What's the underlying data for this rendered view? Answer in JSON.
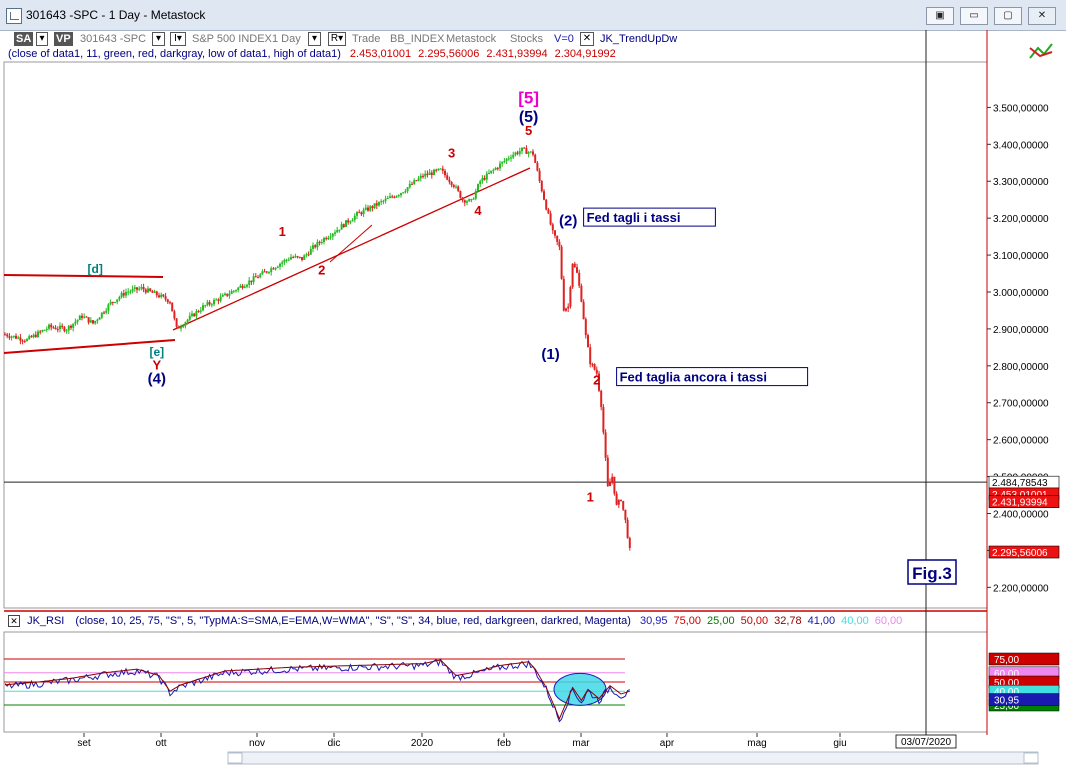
{
  "window": {
    "title": "301643 -SPC - 1 Day - Metastock",
    "buttons": [
      "▣",
      "▭",
      "▢",
      "✕"
    ]
  },
  "toolbar": {
    "sa": "SA",
    "vp": "VP",
    "symbol": "301643 -SPC",
    "dd1": "▾",
    "interval_btn": "I▾",
    "name": "S&P 500 INDEX",
    "interval": "1 Day",
    "dd2": "▾",
    "r_btn": "R▾",
    "trade": "Trade",
    "source": "BB_INDEX",
    "vendor": "Metastock",
    "type": "Stocks",
    "volume": "V=0",
    "close_x": "✕",
    "indicator": "JK_TrendUpDw"
  },
  "info_line": {
    "params": "(close of data1,  11,  green,  red,  darkgray,  low of data1,  high of data1)",
    "values": [
      "2.453,01001",
      "2.295,56006",
      "2.431,93994",
      "2.304,91992"
    ]
  },
  "rsi_line": {
    "close_x": "✕",
    "name": "JK_RSI",
    "params": "(close,  10,  25,  75,  \"S\",  5,  \"TypMA:S=SMA,E=EMA,W=WMA\",  \"S\",  \"S\",  34,  blue,  red,  darkgreen,  darkred,  Magenta)",
    "values": [
      {
        "text": "30,95",
        "color": "#1a1ab0"
      },
      {
        "text": "75,00",
        "color": "#cc0000"
      },
      {
        "text": "25,00",
        "color": "#008000"
      },
      {
        "text": "50,00",
        "color": "#cc0000"
      },
      {
        "text": "32,78",
        "color": "#8b0000"
      },
      {
        "text": "41,00",
        "color": "#1a1ab0"
      },
      {
        "text": "40,00",
        "color": "#40e0e0"
      },
      {
        "text": "60,00",
        "color": "#ee88ee"
      }
    ]
  },
  "chart_data": {
    "type": "candlestick",
    "y_ticks": [
      "3.500,00000",
      "3.400,00000",
      "3.300,00000",
      "3.200,00000",
      "3.100,00000",
      "3.000,00000",
      "2.900,00000",
      "2.800,00000",
      "2.700,00000",
      "2.600,00000",
      "2.500,00000",
      "2.400,00000",
      "2.300,00000",
      "2.200,00000"
    ],
    "y_tick_values": [
      3500,
      3400,
      3300,
      3200,
      3100,
      3000,
      2900,
      2800,
      2700,
      2600,
      2500,
      2400,
      2300,
      2200
    ],
    "ylim": [
      2144,
      3623
    ],
    "months": [
      "set",
      "ott",
      "nov",
      "dic",
      "2020",
      "feb",
      "mar",
      "apr",
      "mag",
      "giu"
    ],
    "date_box": "03/07/2020",
    "crosshair_value": "2.484,78543",
    "price_labels": [
      {
        "text": "2.484,78543",
        "value": 2484.8,
        "bg": "#ffffff",
        "fg": "#000000"
      },
      {
        "text": "2.453,01001",
        "value": 2453.0,
        "bg": "#ee1111",
        "fg": "#ffffff"
      },
      {
        "text": "2.431,93994",
        "value": 2431.9,
        "bg": "#ee1111",
        "fg": "#ffffff"
      },
      {
        "text": "2.295,56006",
        "value": 2295.6,
        "bg": "#ee1111",
        "fg": "#ffffff"
      }
    ],
    "series_waypoints": [
      [
        0,
        2885
      ],
      [
        10,
        2870
      ],
      [
        20,
        2905
      ],
      [
        28,
        2900
      ],
      [
        35,
        2935
      ],
      [
        40,
        2915
      ],
      [
        48,
        2970
      ],
      [
        55,
        3000
      ],
      [
        62,
        3010
      ],
      [
        70,
        2990
      ],
      [
        75,
        2975
      ],
      [
        78,
        2900
      ],
      [
        82,
        2920
      ],
      [
        90,
        2960
      ],
      [
        100,
        2990
      ],
      [
        110,
        3025
      ],
      [
        120,
        3060
      ],
      [
        130,
        3095
      ],
      [
        135,
        3090
      ],
      [
        140,
        3120
      ],
      [
        145,
        3145
      ],
      [
        150,
        3165
      ],
      [
        160,
        3210
      ],
      [
        170,
        3240
      ],
      [
        180,
        3270
      ],
      [
        190,
        3315
      ],
      [
        198,
        3330
      ],
      [
        204,
        3290
      ],
      [
        208,
        3250
      ],
      [
        212,
        3245
      ],
      [
        216,
        3300
      ],
      [
        222,
        3330
      ],
      [
        230,
        3370
      ],
      [
        235,
        3385
      ],
      [
        240,
        3375
      ],
      [
        241,
        3350
      ],
      [
        243,
        3300
      ],
      [
        246,
        3230
      ],
      [
        249,
        3160
      ],
      [
        252,
        3120
      ],
      [
        254,
        2955
      ],
      [
        256,
        2960
      ],
      [
        258,
        3080
      ],
      [
        260,
        3050
      ],
      [
        262,
        2980
      ],
      [
        264,
        2880
      ],
      [
        266,
        2810
      ],
      [
        269,
        2780
      ],
      [
        271,
        2695
      ],
      [
        274,
        2470
      ],
      [
        276,
        2500
      ],
      [
        278,
        2420
      ],
      [
        280,
        2440
      ],
      [
        282,
        2380
      ],
      [
        284,
        2300
      ]
    ],
    "labels": [
      {
        "text": "[5]",
        "x": 238,
        "y": 3510,
        "color": "#ee00cc",
        "size": 17
      },
      {
        "text": "(5)",
        "x": 238,
        "y": 3460,
        "color": "#000080",
        "size": 16
      },
      {
        "text": "5",
        "x": 238,
        "y": 3425,
        "color": "#cc0000",
        "size": 13
      },
      {
        "text": "3",
        "x": 203,
        "y": 3364,
        "color": "#cc0000",
        "size": 13
      },
      {
        "text": "4",
        "x": 215,
        "y": 3208,
        "color": "#cc0000",
        "size": 13
      },
      {
        "text": "1",
        "x": 126,
        "y": 3152,
        "color": "#cc0000",
        "size": 13
      },
      {
        "text": "2",
        "x": 144,
        "y": 3048,
        "color": "#cc0000",
        "size": 13
      },
      {
        "text": "[d]",
        "x": 41,
        "y": 3052,
        "color": "#008080",
        "size": 12
      },
      {
        "text": "[e]",
        "x": 69,
        "y": 2826,
        "color": "#008080",
        "size": 12
      },
      {
        "text": "Y",
        "x": 69,
        "y": 2790,
        "color": "#cc0000",
        "size": 13
      },
      {
        "text": "(4)",
        "x": 69,
        "y": 2752,
        "color": "#000080",
        "size": 15
      },
      {
        "text": "(2)",
        "x": 256,
        "y": 3180,
        "color": "#000080",
        "size": 15
      },
      {
        "text": "(1)",
        "x": 248,
        "y": 2818,
        "color": "#000080",
        "size": 15
      },
      {
        "text": "2",
        "x": 269,
        "y": 2750,
        "color": "#cc0000",
        "size": 13
      },
      {
        "text": "1",
        "x": 266,
        "y": 2433,
        "color": "#cc0000",
        "size": 13
      }
    ],
    "annotations": [
      {
        "text": "Fed tagli i tassi",
        "x": 263,
        "y": 3192
      },
      {
        "text": "Fed taglia ancora i tassi",
        "x": 278,
        "y": 2760
      }
    ],
    "fig_label": "Fig.3",
    "rsi": {
      "ylim": [
        0,
        100
      ],
      "levels": [
        {
          "value": 75,
          "label": "75,00",
          "color": "#cc0000"
        },
        {
          "value": 60,
          "label": "60,00",
          "color": "#ee88ee"
        },
        {
          "value": 50,
          "label": "50,00",
          "color": "#cc0000"
        },
        {
          "value": 40,
          "label": "40,00",
          "color": "#40e0e0"
        },
        {
          "value": 25,
          "label": "25,00",
          "color": "#008000"
        }
      ],
      "current_label": "30,95",
      "current_color": "#1a1ab0",
      "waypoints": [
        [
          0,
          45
        ],
        [
          15,
          48
        ],
        [
          30,
          52
        ],
        [
          45,
          58
        ],
        [
          60,
          62
        ],
        [
          70,
          55
        ],
        [
          75,
          38
        ],
        [
          80,
          45
        ],
        [
          100,
          60
        ],
        [
          130,
          64
        ],
        [
          160,
          66
        ],
        [
          190,
          68
        ],
        [
          198,
          72
        ],
        [
          205,
          55
        ],
        [
          212,
          58
        ],
        [
          225,
          66
        ],
        [
          238,
          70
        ],
        [
          241,
          62
        ],
        [
          246,
          42
        ],
        [
          250,
          20
        ],
        [
          252,
          8
        ],
        [
          255,
          25
        ],
        [
          258,
          42
        ],
        [
          262,
          28
        ],
        [
          265,
          40
        ],
        [
          270,
          30
        ],
        [
          275,
          44
        ],
        [
          280,
          35
        ],
        [
          284,
          38
        ]
      ]
    }
  }
}
